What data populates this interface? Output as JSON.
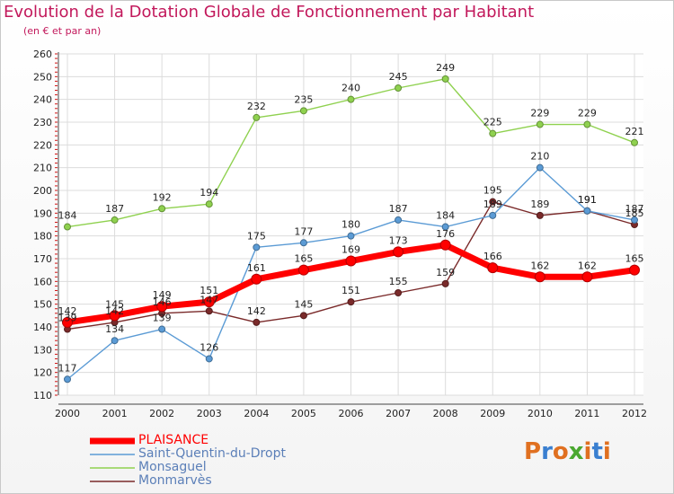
{
  "header": {
    "title": "Evolution de la Dotation Globale de Fonctionnement par Habitant",
    "subtitle": "(en € et par an)"
  },
  "logo": {
    "text": "Proxiti",
    "colors": [
      "#e07020",
      "#3a7fd0",
      "#e07020",
      "#4aa830",
      "#e07020",
      "#3a7fd0",
      "#e07020"
    ]
  },
  "chart_data": {
    "type": "line",
    "x": [
      2000,
      2001,
      2002,
      2003,
      2004,
      2005,
      2006,
      2007,
      2008,
      2009,
      2010,
      2011,
      2012
    ],
    "ylim": [
      110,
      260
    ],
    "yticks": [
      110,
      120,
      130,
      140,
      150,
      160,
      170,
      180,
      190,
      200,
      210,
      220,
      230,
      240,
      250,
      260
    ],
    "grid": true,
    "legend": "bottom-left",
    "series": [
      {
        "name": "Monmarvès",
        "color": "#7a2a2a",
        "values": [
          139,
          142,
          146,
          147,
          142,
          145,
          151,
          155,
          159,
          195,
          189,
          191,
          185
        ]
      },
      {
        "name": "Saint-Quentin-du-Dropt",
        "color": "#5b9bd5",
        "values": [
          117,
          134,
          139,
          126,
          175,
          177,
          180,
          187,
          184,
          189,
          210,
          191,
          187
        ]
      },
      {
        "name": "Monsaguel",
        "color": "#8fd14f",
        "values": [
          184,
          187,
          192,
          194,
          232,
          235,
          240,
          245,
          249,
          225,
          229,
          229,
          221
        ]
      },
      {
        "name": "PLAISANCE",
        "color": "#ff0000",
        "values": [
          142,
          145,
          149,
          151,
          161,
          165,
          169,
          173,
          176,
          166,
          162,
          162,
          165
        ]
      }
    ],
    "legend_order": [
      "PLAISANCE",
      "Saint-Quentin-du-Dropt",
      "Monsaguel",
      "Monmarvès"
    ]
  }
}
